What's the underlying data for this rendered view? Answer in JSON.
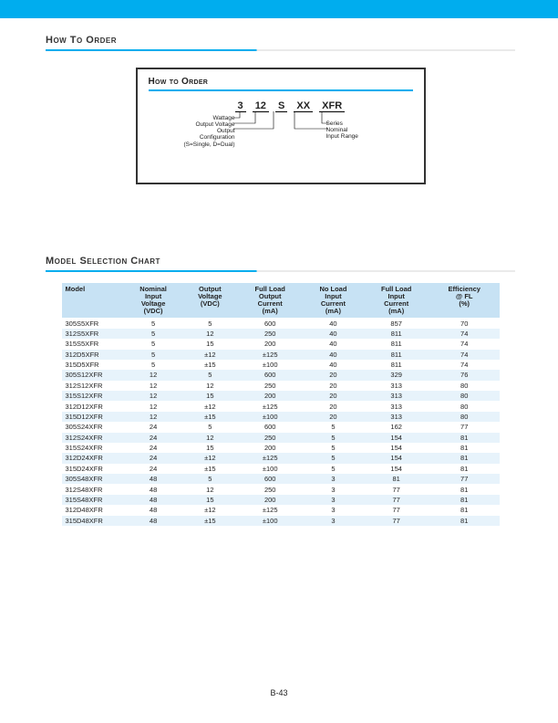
{
  "section_headings": {
    "how_to_order_outer": "How To Order",
    "how_to_order_inner": "How to Order",
    "model_selection": "Model Selection Chart"
  },
  "order_code": {
    "segments": [
      "3",
      "12",
      "S",
      "XX",
      "XFR"
    ],
    "left_labels": [
      "Wattage",
      "Output Voltage",
      "Output\nConfiguration\n(S=Single, D=Dual)"
    ],
    "right_labels": [
      "Series",
      "Nominal\nInput Range"
    ]
  },
  "table": {
    "columns": [
      "Model",
      "Nominal\nInput\nVoltage\n(VDC)",
      "Output\nVoltage\n(VDC)",
      "Full Load\nOutput\nCurrent\n(mA)",
      "No Load\nInput\nCurrent\n(mA)",
      "Full Load\nInput\nCurrent\n(mA)",
      "Efficiency\n@ FL\n(%)"
    ],
    "rows": [
      [
        "305S5XFR",
        "5",
        "5",
        "600",
        "40",
        "857",
        "70"
      ],
      [
        "312S5XFR",
        "5",
        "12",
        "250",
        "40",
        "811",
        "74"
      ],
      [
        "315S5XFR",
        "5",
        "15",
        "200",
        "40",
        "811",
        "74"
      ],
      [
        "312D5XFR",
        "5",
        "±12",
        "±125",
        "40",
        "811",
        "74"
      ],
      [
        "315D5XFR",
        "5",
        "±15",
        "±100",
        "40",
        "811",
        "74"
      ],
      [
        "305S12XFR",
        "12",
        "5",
        "600",
        "20",
        "329",
        "76"
      ],
      [
        "312S12XFR",
        "12",
        "12",
        "250",
        "20",
        "313",
        "80"
      ],
      [
        "315S12XFR",
        "12",
        "15",
        "200",
        "20",
        "313",
        "80"
      ],
      [
        "312D12XFR",
        "12",
        "±12",
        "±125",
        "20",
        "313",
        "80"
      ],
      [
        "315D12XFR",
        "12",
        "±15",
        "±100",
        "20",
        "313",
        "80"
      ],
      [
        "305S24XFR",
        "24",
        "5",
        "600",
        "5",
        "162",
        "77"
      ],
      [
        "312S24XFR",
        "24",
        "12",
        "250",
        "5",
        "154",
        "81"
      ],
      [
        "315S24XFR",
        "24",
        "15",
        "200",
        "5",
        "154",
        "81"
      ],
      [
        "312D24XFR",
        "24",
        "±12",
        "±125",
        "5",
        "154",
        "81"
      ],
      [
        "315D24XFR",
        "24",
        "±15",
        "±100",
        "5",
        "154",
        "81"
      ],
      [
        "305S48XFR",
        "48",
        "5",
        "600",
        "3",
        "81",
        "77"
      ],
      [
        "312S48XFR",
        "48",
        "12",
        "250",
        "3",
        "77",
        "81"
      ],
      [
        "315S48XFR",
        "48",
        "15",
        "200",
        "3",
        "77",
        "81"
      ],
      [
        "312D48XFR",
        "48",
        "±12",
        "±125",
        "3",
        "77",
        "81"
      ],
      [
        "315D48XFR",
        "48",
        "±15",
        "±100",
        "3",
        "77",
        "81"
      ]
    ],
    "stripe_color": "#e7f3fb",
    "header_bg": "#c7e2f4"
  },
  "page_number": "B-43",
  "colors": {
    "stripe": "#00adee"
  }
}
